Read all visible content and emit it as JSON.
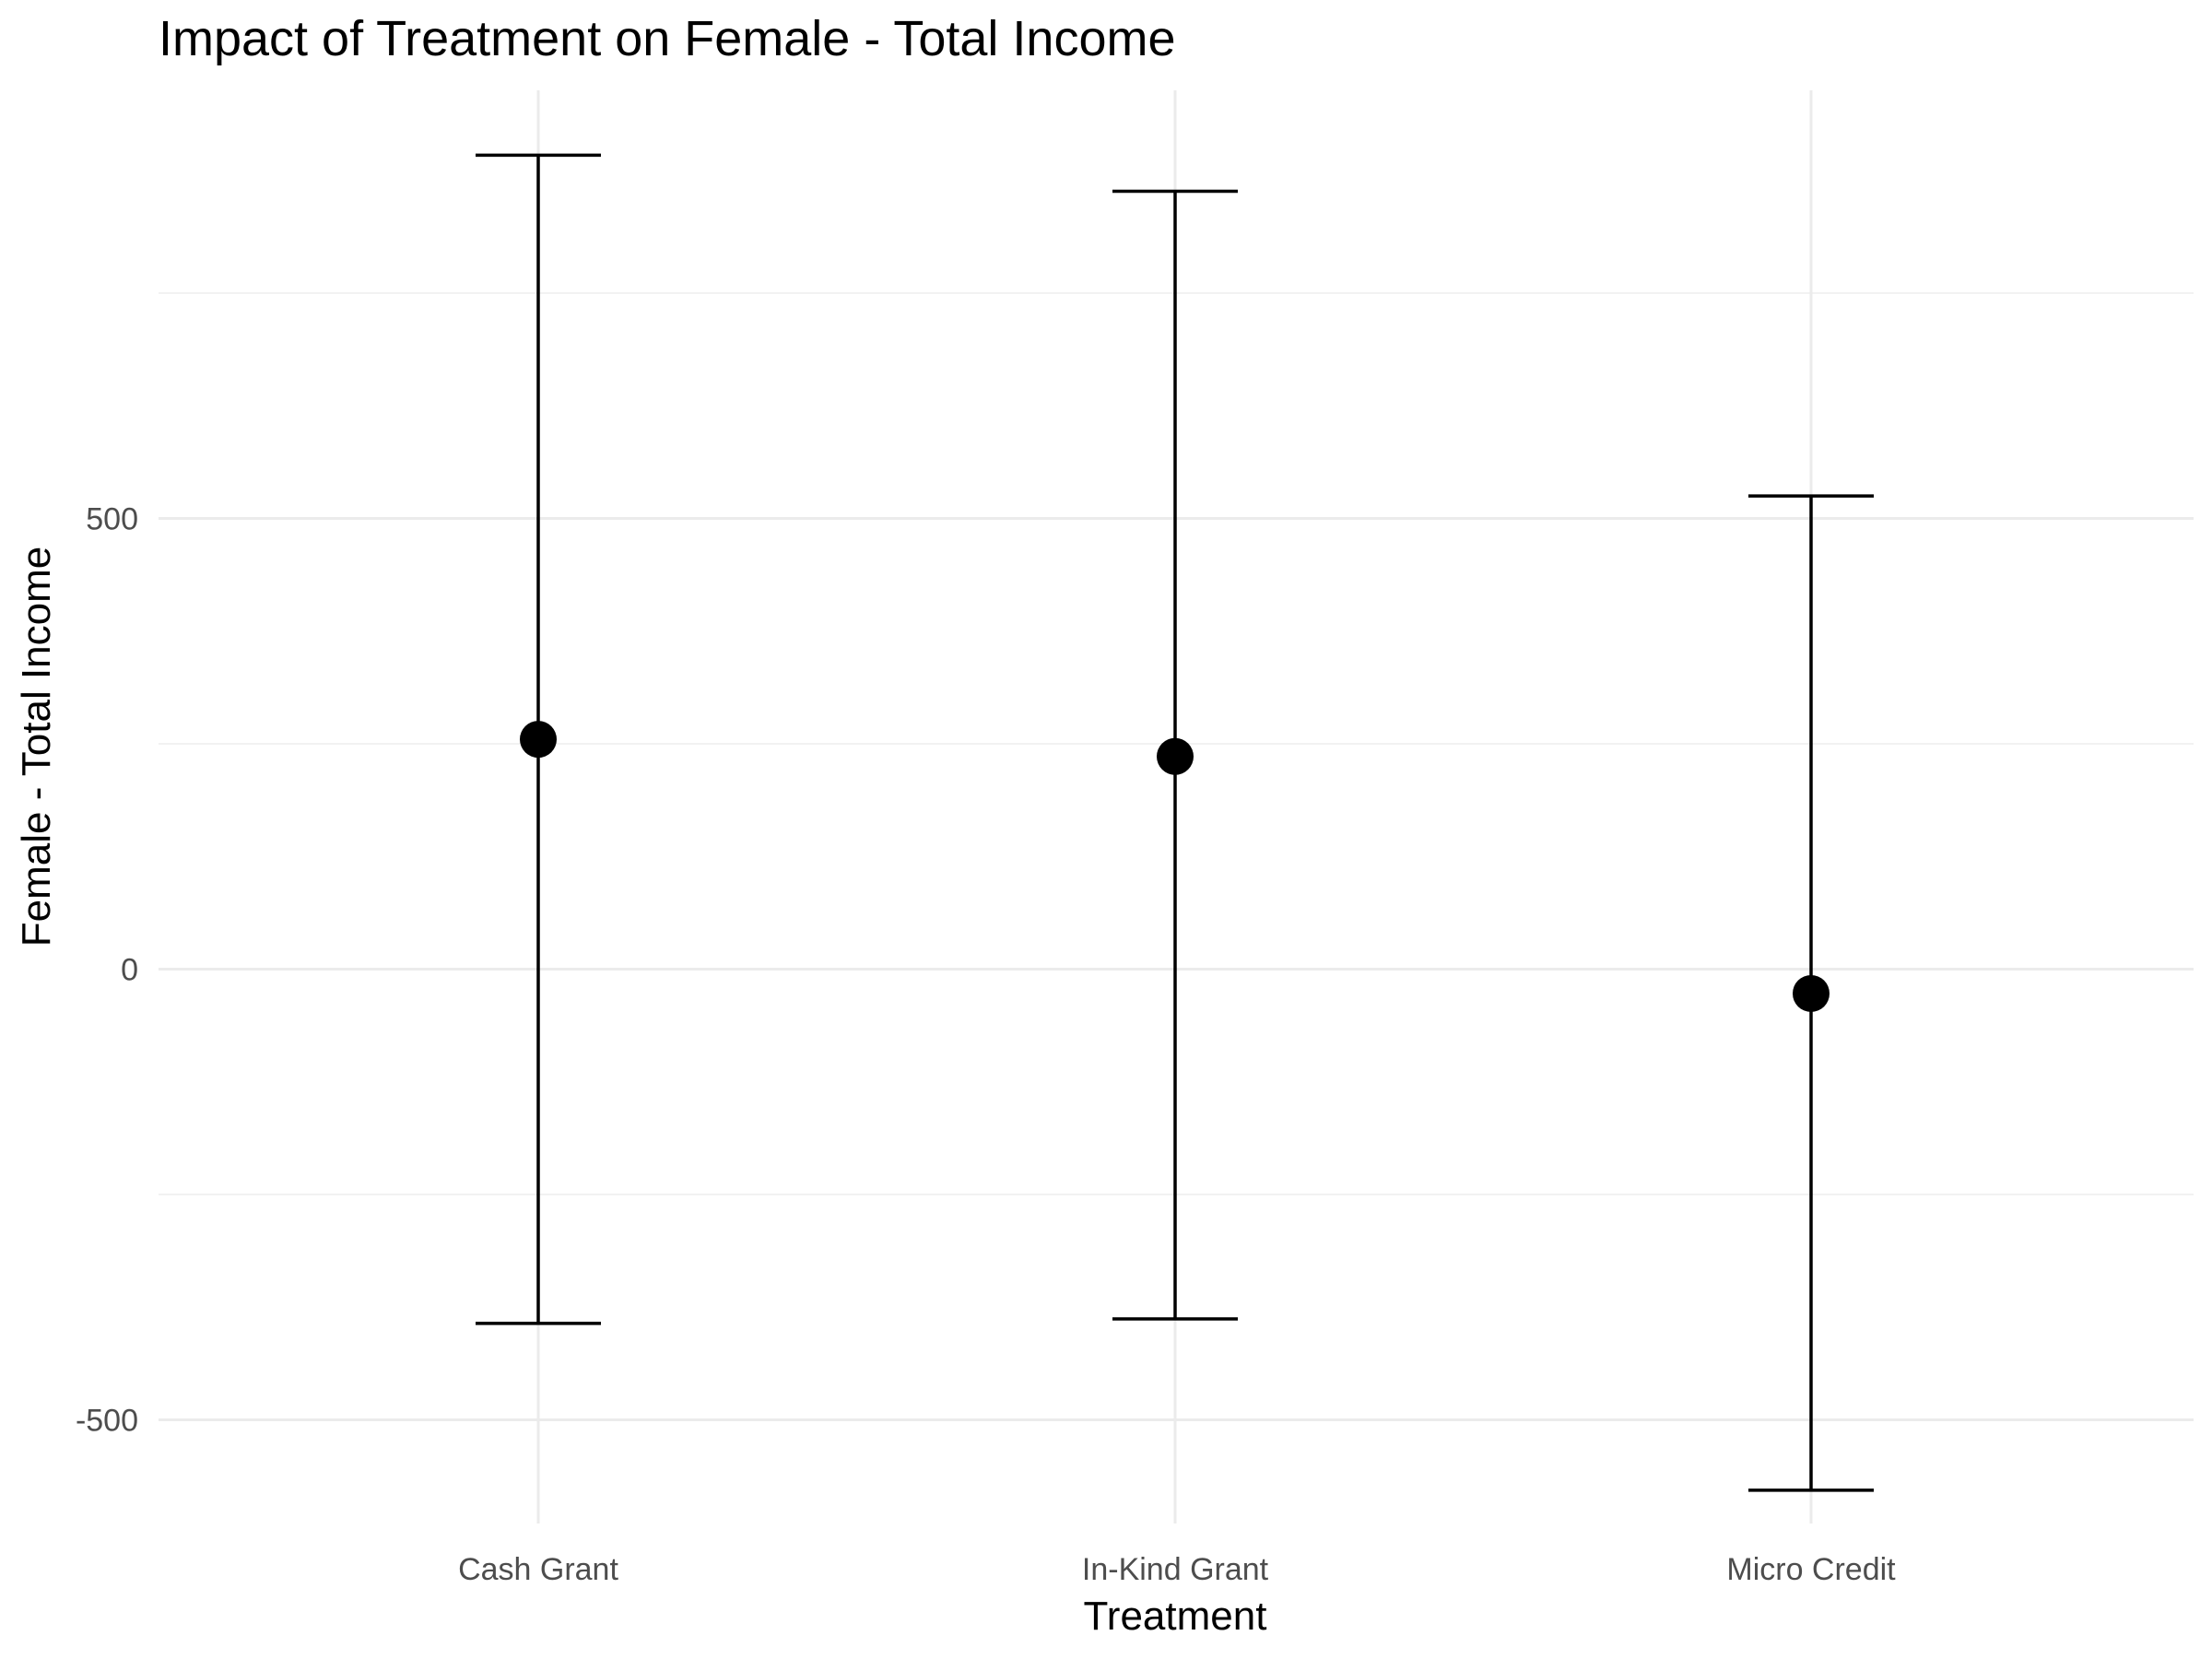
{
  "chart_data": {
    "type": "errorbar",
    "title": "Impact of Treatment on Female - Total Income",
    "xlabel": "Treatment",
    "ylabel": "Female - Total Income",
    "categories": [
      "Cash Grant",
      "In-Kind Grant",
      "Micro Credit"
    ],
    "estimates": [
      255,
      236,
      -27
    ],
    "lower": [
      -393,
      -388,
      -578
    ],
    "upper": [
      903,
      863,
      525
    ],
    "ylim": [
      -615,
      975
    ],
    "yticks": [
      -500,
      0,
      500
    ],
    "ytick_labels": [
      "-500",
      "0",
      "500"
    ],
    "grid": true,
    "legend": "none",
    "colors": {
      "marks": "#000000",
      "grid": "#ebebeb"
    }
  }
}
